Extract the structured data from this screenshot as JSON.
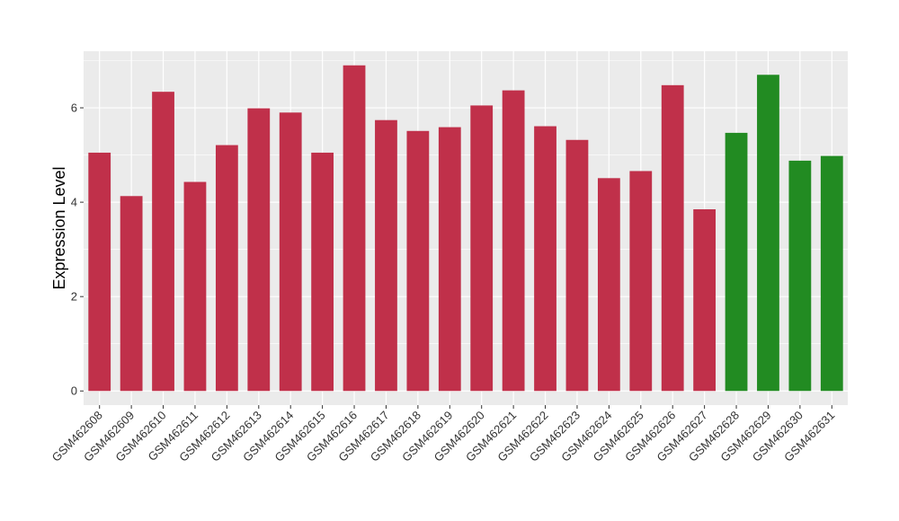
{
  "chart_data": {
    "type": "bar",
    "title": "",
    "xlabel": "",
    "ylabel": "Expression Level",
    "ylim": [
      -0.3,
      7.2
    ],
    "yticks": [
      0,
      2,
      4,
      6
    ],
    "grid": true,
    "colors": {
      "group_red": "#c0304a",
      "group_green": "#228b22",
      "panel_bg": "#ebebeb",
      "grid": "#ffffff"
    },
    "categories": [
      "GSM462608",
      "GSM462609",
      "GSM462610",
      "GSM462611",
      "GSM462612",
      "GSM462613",
      "GSM462614",
      "GSM462615",
      "GSM462616",
      "GSM462617",
      "GSM462618",
      "GSM462619",
      "GSM462620",
      "GSM462621",
      "GSM462622",
      "GSM462623",
      "GSM462624",
      "GSM462625",
      "GSM462626",
      "GSM462627",
      "GSM462628",
      "GSM462629",
      "GSM462630",
      "GSM462631"
    ],
    "values": [
      5.05,
      4.13,
      6.34,
      4.43,
      5.21,
      5.99,
      5.9,
      5.05,
      6.9,
      5.74,
      5.51,
      5.59,
      6.05,
      6.37,
      5.61,
      5.32,
      4.51,
      4.66,
      6.48,
      3.85,
      5.47,
      6.7,
      4.88,
      4.98
    ],
    "bar_colors": [
      "#c0304a",
      "#c0304a",
      "#c0304a",
      "#c0304a",
      "#c0304a",
      "#c0304a",
      "#c0304a",
      "#c0304a",
      "#c0304a",
      "#c0304a",
      "#c0304a",
      "#c0304a",
      "#c0304a",
      "#c0304a",
      "#c0304a",
      "#c0304a",
      "#c0304a",
      "#c0304a",
      "#c0304a",
      "#c0304a",
      "#228b22",
      "#228b22",
      "#228b22",
      "#228b22"
    ]
  }
}
